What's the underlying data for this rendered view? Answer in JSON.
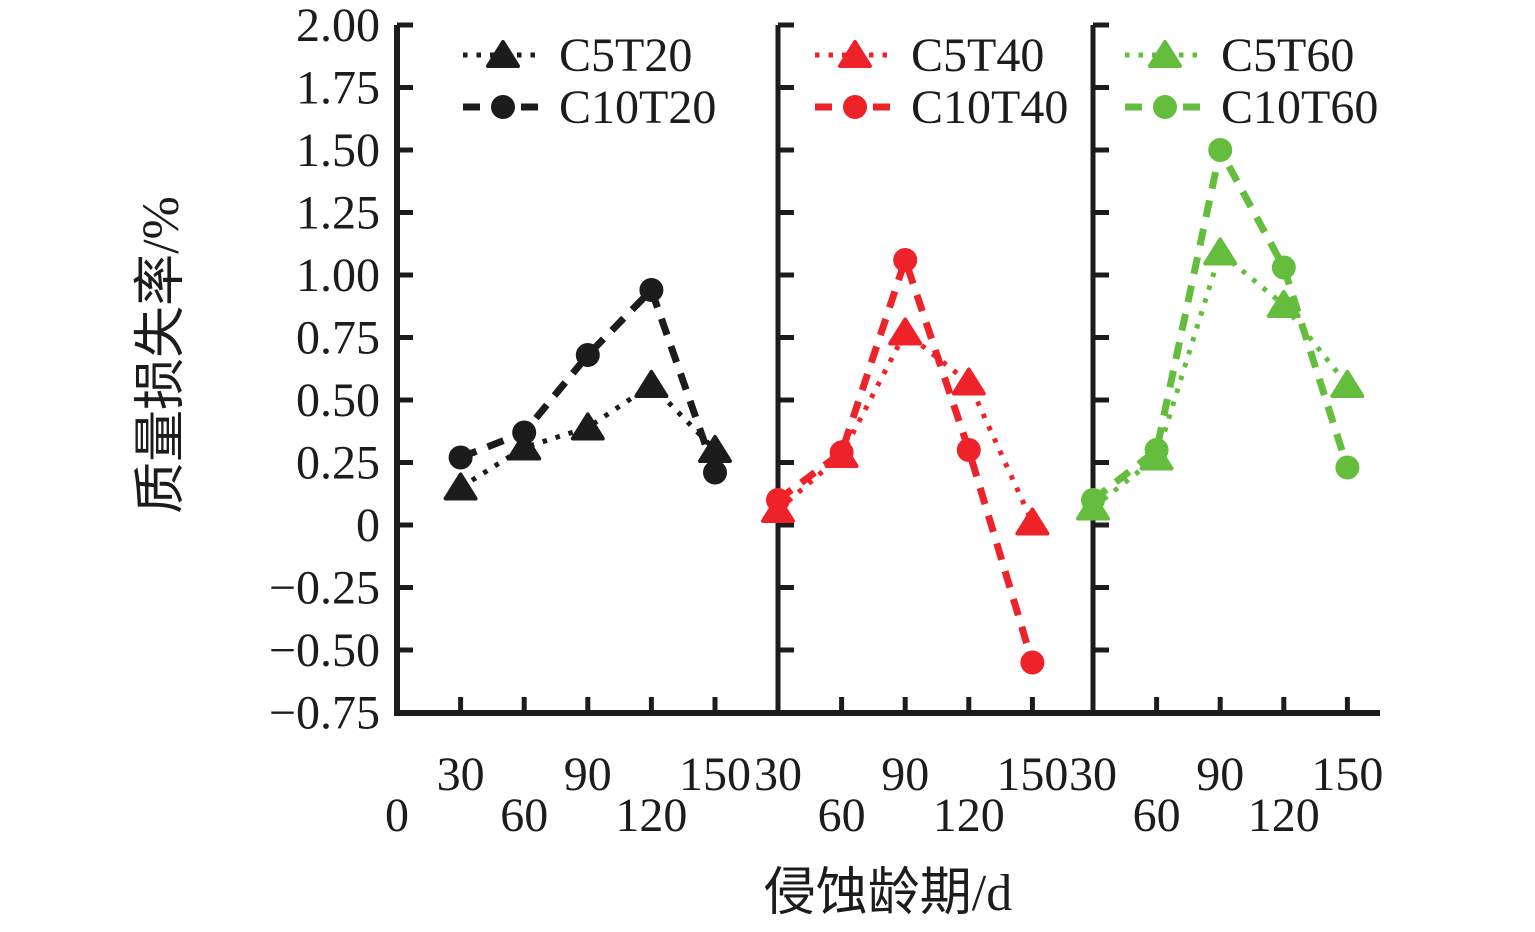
{
  "colors": {
    "black": "#1c1c1c",
    "red": "#ee2329",
    "green": "#64bd3c",
    "axis": "#1c1c1c",
    "background": "#ffffff"
  },
  "chart_data": {
    "type": "line",
    "title": "",
    "xlabel": "侵蚀龄期/d",
    "ylabel": "质量损失率/%",
    "ylim": [
      -0.75,
      2.0
    ],
    "ytick_step": 0.25,
    "ytick_labels": [
      "2.00",
      "1.75",
      "1.50",
      "1.25",
      "1.00",
      "0.75",
      "0.50",
      "0.25",
      "0",
      "−0.25",
      "−0.50",
      "−0.75"
    ],
    "grid": false,
    "legend_position": "top-inside-one-per-panel",
    "x": [
      30,
      60,
      90,
      120,
      150
    ],
    "panels": [
      {
        "name": "T20",
        "xlim": [
          0,
          180
        ],
        "xticks": [
          0,
          30,
          60,
          90,
          120,
          150
        ],
        "xtick_labels": [
          "0",
          "30",
          "60",
          "90",
          "120",
          "150"
        ],
        "series": [
          {
            "name": "C5T20",
            "color": "#1c1c1c",
            "marker": "triangle",
            "line": "dotted",
            "values": [
              0.15,
              0.31,
              0.39,
              0.56,
              0.3
            ]
          },
          {
            "name": "C10T20",
            "color": "#1c1c1c",
            "marker": "circle",
            "line": "dashed",
            "values": [
              0.27,
              0.37,
              0.68,
              0.94,
              0.21
            ]
          }
        ]
      },
      {
        "name": "T40",
        "xlim": [
          30,
          178
        ],
        "xticks": [
          30,
          60,
          90,
          120,
          150
        ],
        "xtick_labels": [
          "30",
          "60",
          "90",
          "120",
          "150"
        ],
        "series": [
          {
            "name": "C5T40",
            "color": "#ee2329",
            "marker": "triangle",
            "line": "dotted",
            "values": [
              0.06,
              0.28,
              0.77,
              0.57,
              0.01
            ]
          },
          {
            "name": "C10T40",
            "color": "#ee2329",
            "marker": "circle",
            "line": "dashed",
            "values": [
              0.1,
              0.29,
              1.06,
              0.3,
              -0.55
            ]
          }
        ]
      },
      {
        "name": "T60",
        "xlim": [
          30,
          165
        ],
        "xticks": [
          30,
          60,
          90,
          120,
          150
        ],
        "xtick_labels": [
          "30",
          "60",
          "90",
          "120",
          "150"
        ],
        "series": [
          {
            "name": "C5T60",
            "color": "#64bd3c",
            "marker": "triangle",
            "line": "dotted",
            "values": [
              0.07,
              0.27,
              1.09,
              0.88,
              0.56
            ]
          },
          {
            "name": "C10T60",
            "color": "#64bd3c",
            "marker": "circle",
            "line": "dashed",
            "values": [
              0.1,
              0.3,
              1.5,
              1.03,
              0.23
            ]
          }
        ]
      }
    ]
  }
}
